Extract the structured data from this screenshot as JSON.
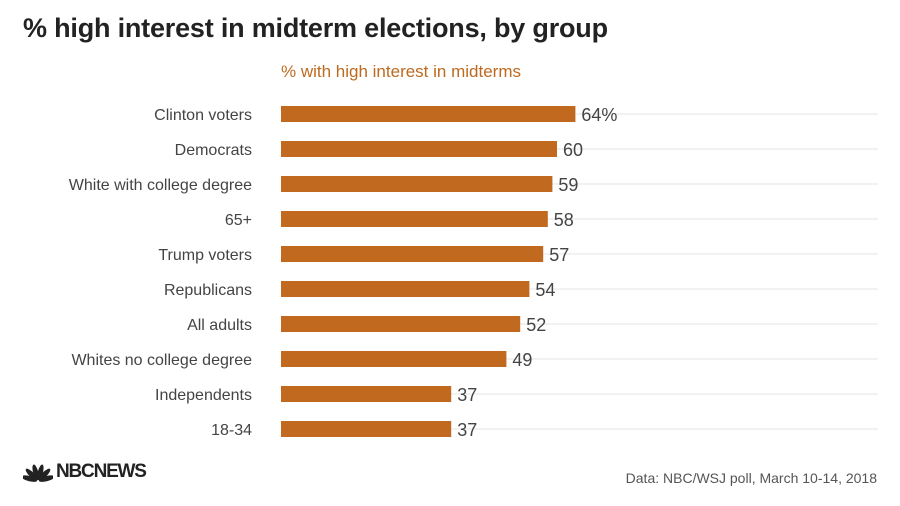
{
  "header": {
    "title": "% high interest in midterm elections, by group",
    "subtitle": "% with high interest in midterms"
  },
  "footer": {
    "brand": "NBCNEWS",
    "source": "Data: NBC/WSJ poll, March 10-14, 2018"
  },
  "colors": {
    "bar": "#c0691f",
    "subtitle": "#bd6a1f",
    "gridline": "#e6e6e6"
  },
  "chart_data": {
    "type": "bar",
    "orientation": "horizontal",
    "title": "% high interest in midterm elections, by group",
    "subtitle": "% with high interest in midterms",
    "categories": [
      "Clinton voters",
      "Democrats",
      "White with college degree",
      "65+",
      "Trump voters",
      "Republicans",
      "All adults",
      "Whites no college degree",
      "Independents",
      "18-34"
    ],
    "values": [
      64,
      60,
      59,
      58,
      57,
      54,
      52,
      49,
      37,
      37
    ],
    "value_labels": [
      "64%",
      "60",
      "59",
      "58",
      "57",
      "54",
      "52",
      "49",
      "37",
      "37"
    ],
    "xlim": [
      0,
      100
    ],
    "grid": true,
    "legend": "none"
  }
}
